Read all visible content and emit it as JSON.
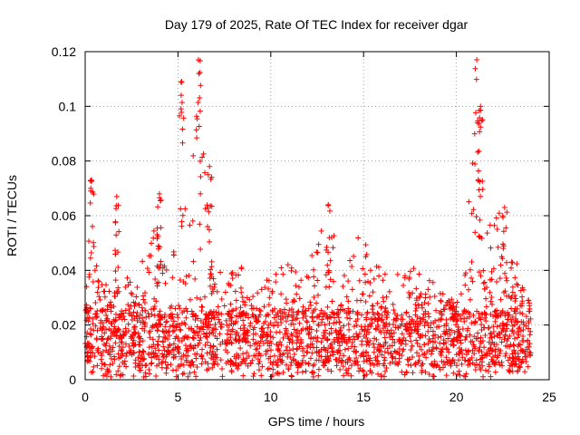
{
  "chart_data": {
    "type": "scatter",
    "title": "Day 179 of 2025, Rate Of TEC Index for receiver dgar",
    "xlabel": "GPS time / hours",
    "ylabel": "ROTI / TECUs",
    "xlim": [
      0,
      25
    ],
    "ylim": [
      0,
      0.12
    ],
    "x_ticks": [
      0,
      5,
      10,
      15,
      20,
      25
    ],
    "x_tick_labels": [
      "0",
      "5",
      "10",
      "15",
      "20",
      "25"
    ],
    "y_ticks": [
      0,
      0.02,
      0.04,
      0.06,
      0.08,
      0.1,
      0.12
    ],
    "y_tick_labels": [
      "0",
      "0.02",
      "0.04",
      "0.06",
      "0.08",
      "0.1",
      "0.12"
    ],
    "grid": true,
    "marker": "plus",
    "color": "#ff0000",
    "data_range_x": [
      0,
      24
    ],
    "typical_band": [
      0.005,
      0.025
    ],
    "envelope": {
      "x": [
        0,
        0.3,
        0.5,
        1,
        1.5,
        1.8,
        2,
        3,
        4,
        4.5,
        5.0,
        5.2,
        5.5,
        6.0,
        6.2,
        6.6,
        7,
        8,
        9,
        10,
        11,
        12,
        12.5,
        13,
        14,
        15,
        15.5,
        16,
        17,
        18,
        19,
        20,
        20.5,
        21,
        21.2,
        21.5,
        22,
        22.5,
        23,
        23.5,
        24
      ],
      "y": [
        0.022,
        0.072,
        0.048,
        0.036,
        0.032,
        0.066,
        0.034,
        0.048,
        0.058,
        0.063,
        0.045,
        0.11,
        0.06,
        0.117,
        0.09,
        0.078,
        0.045,
        0.048,
        0.038,
        0.04,
        0.044,
        0.04,
        0.055,
        0.064,
        0.04,
        0.057,
        0.045,
        0.04,
        0.044,
        0.04,
        0.035,
        0.028,
        0.045,
        0.117,
        0.08,
        0.056,
        0.058,
        0.063,
        0.054,
        0.038,
        0.03
      ]
    },
    "spikes": [
      {
        "x": 0.35,
        "y": 0.073
      },
      {
        "x": 1.7,
        "y": 0.067
      },
      {
        "x": 4.0,
        "y": 0.068
      },
      {
        "x": 5.2,
        "y": 0.109
      },
      {
        "x": 6.1,
        "y": 0.117
      },
      {
        "x": 6.7,
        "y": 0.078
      },
      {
        "x": 13.1,
        "y": 0.064
      },
      {
        "x": 21.1,
        "y": 0.117
      },
      {
        "x": 21.3,
        "y": 0.1
      },
      {
        "x": 22.6,
        "y": 0.063
      }
    ]
  }
}
